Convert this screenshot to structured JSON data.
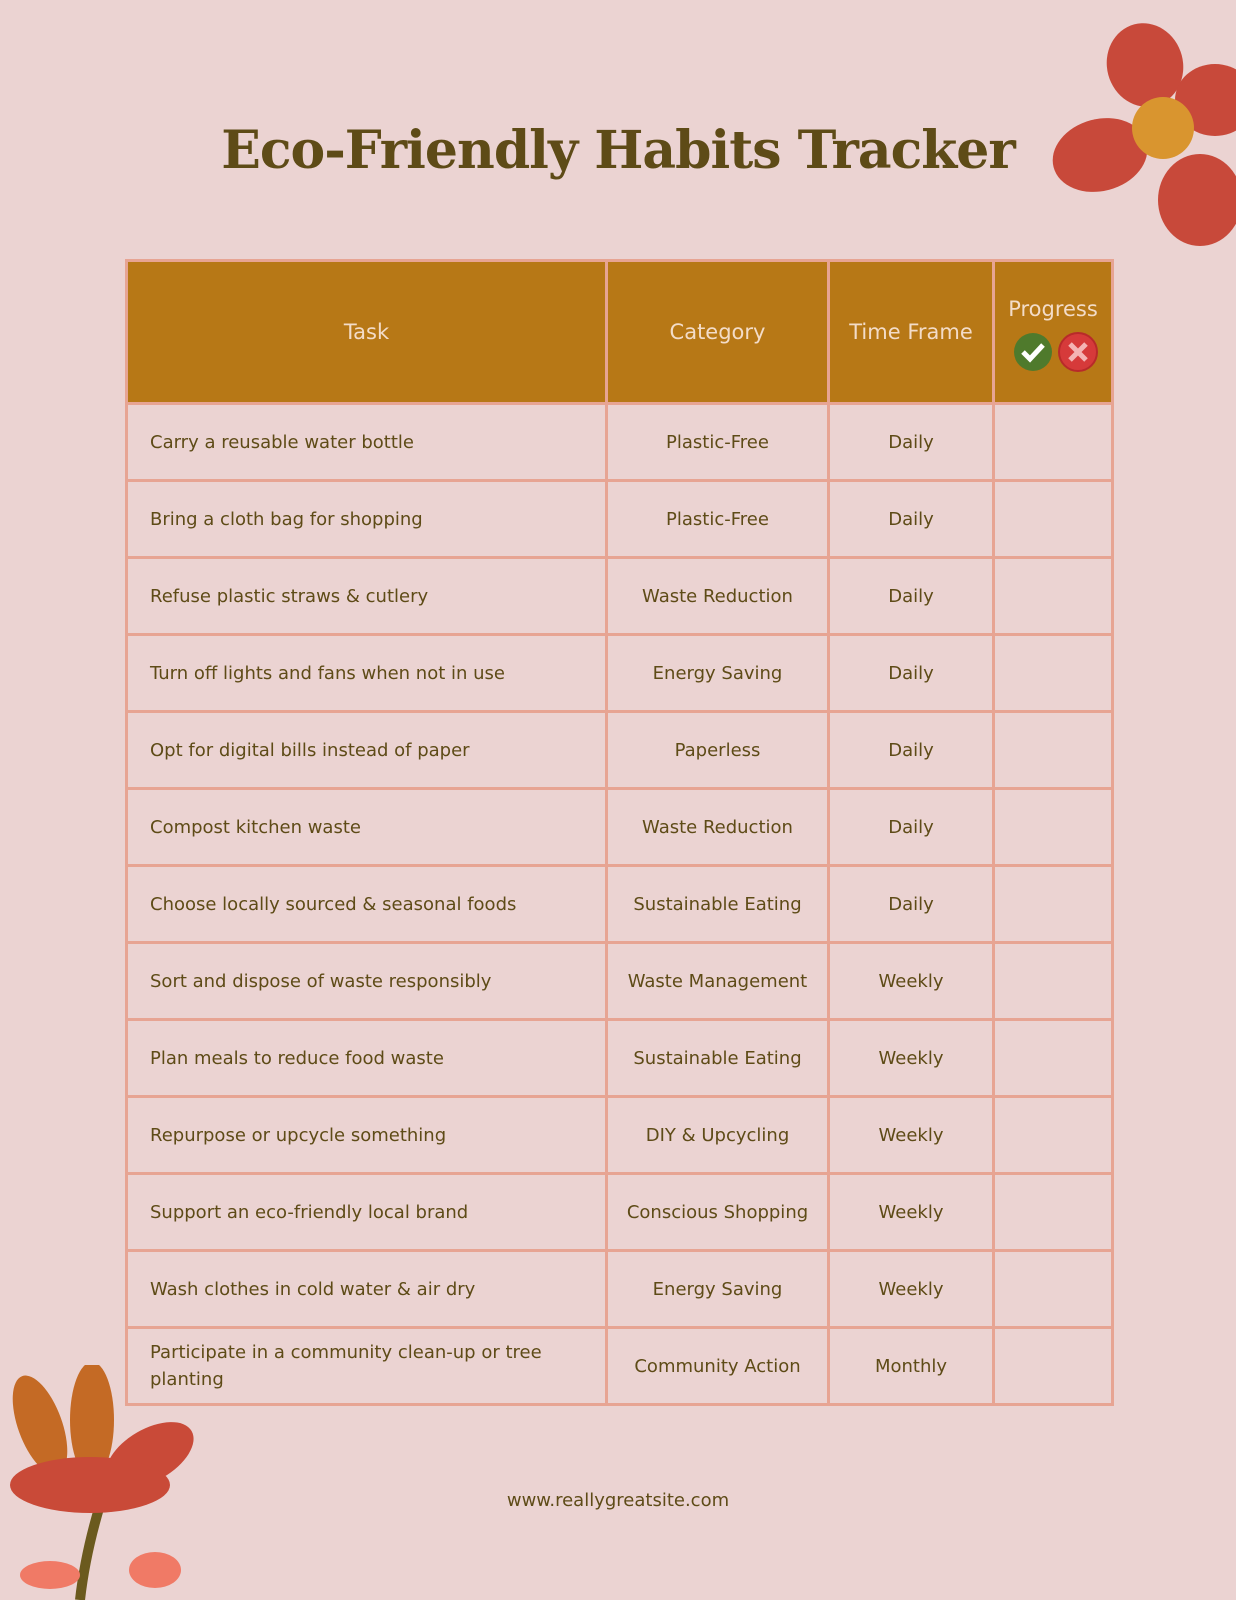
{
  "header": {
    "title": "Eco-Friendly Habits Tracker"
  },
  "table": {
    "columns": [
      "Task",
      "Category",
      "Time Frame",
      "Progress"
    ],
    "rows": [
      [
        "Carry a reusable water bottle",
        "Plastic-Free",
        "Daily"
      ],
      [
        "Bring a cloth bag for shopping",
        "Plastic-Free",
        "Daily"
      ],
      [
        "Refuse plastic straws & cutlery",
        "Waste Reduction",
        "Daily"
      ],
      [
        "Turn off lights and fans when not in use",
        "Energy Saving",
        "Daily"
      ],
      [
        "Opt for digital bills instead of paper",
        "Paperless",
        "Daily"
      ],
      [
        "Compost kitchen waste",
        "Waste Reduction",
        "Daily"
      ],
      [
        "Choose locally sourced & seasonal foods",
        "Sustainable Eating",
        "Daily"
      ],
      [
        "Sort and dispose of waste responsibly",
        "Waste Management",
        "Weekly"
      ],
      [
        "Plan meals to reduce food waste",
        "Sustainable Eating",
        "Weekly"
      ],
      [
        "Repurpose or upcycle something",
        "DIY & Upcycling",
        "Weekly"
      ],
      [
        "Support an eco-friendly local brand",
        "Conscious Shopping",
        "Weekly"
      ],
      [
        "Wash clothes in cold water & air dry",
        "Energy Saving",
        "Weekly"
      ],
      [
        "Participate in a community clean-up or tree planting",
        "Community Action",
        "Monthly"
      ]
    ]
  },
  "footer": {
    "url": "www.reallygreatsite.com"
  }
}
